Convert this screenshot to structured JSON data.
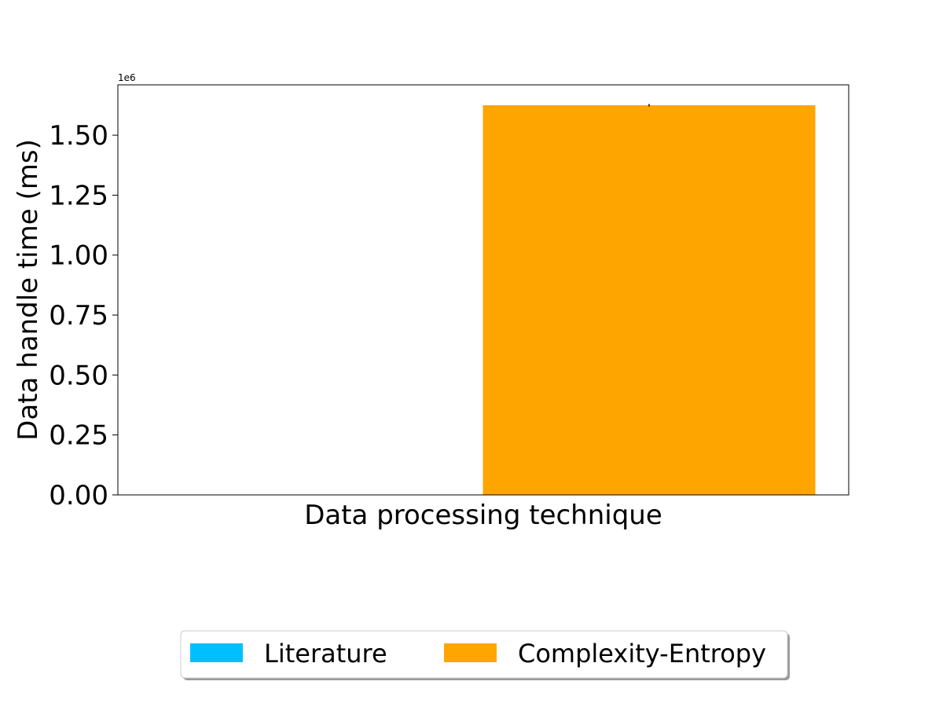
{
  "chart_data": {
    "type": "bar",
    "title": "",
    "xlabel": "Data processing technique",
    "ylabel": "Data handle time (ms)",
    "y_offset_label": "1e6",
    "ylim": [
      0,
      1710000
    ],
    "y_ticks": [
      0,
      250000,
      500000,
      750000,
      1000000,
      1250000,
      1500000
    ],
    "y_tick_labels": [
      "0.00",
      "0.25",
      "0.50",
      "0.75",
      "1.00",
      "1.25",
      "1.50"
    ],
    "grid": false,
    "legend_position": "bottom-center",
    "series": [
      {
        "name": "Literature",
        "value": 0,
        "error": 0,
        "color": "#00bfff"
      },
      {
        "name": "Complexity-Entropy",
        "value": 1625000,
        "error": 5000,
        "color": "#ffa500"
      }
    ]
  }
}
